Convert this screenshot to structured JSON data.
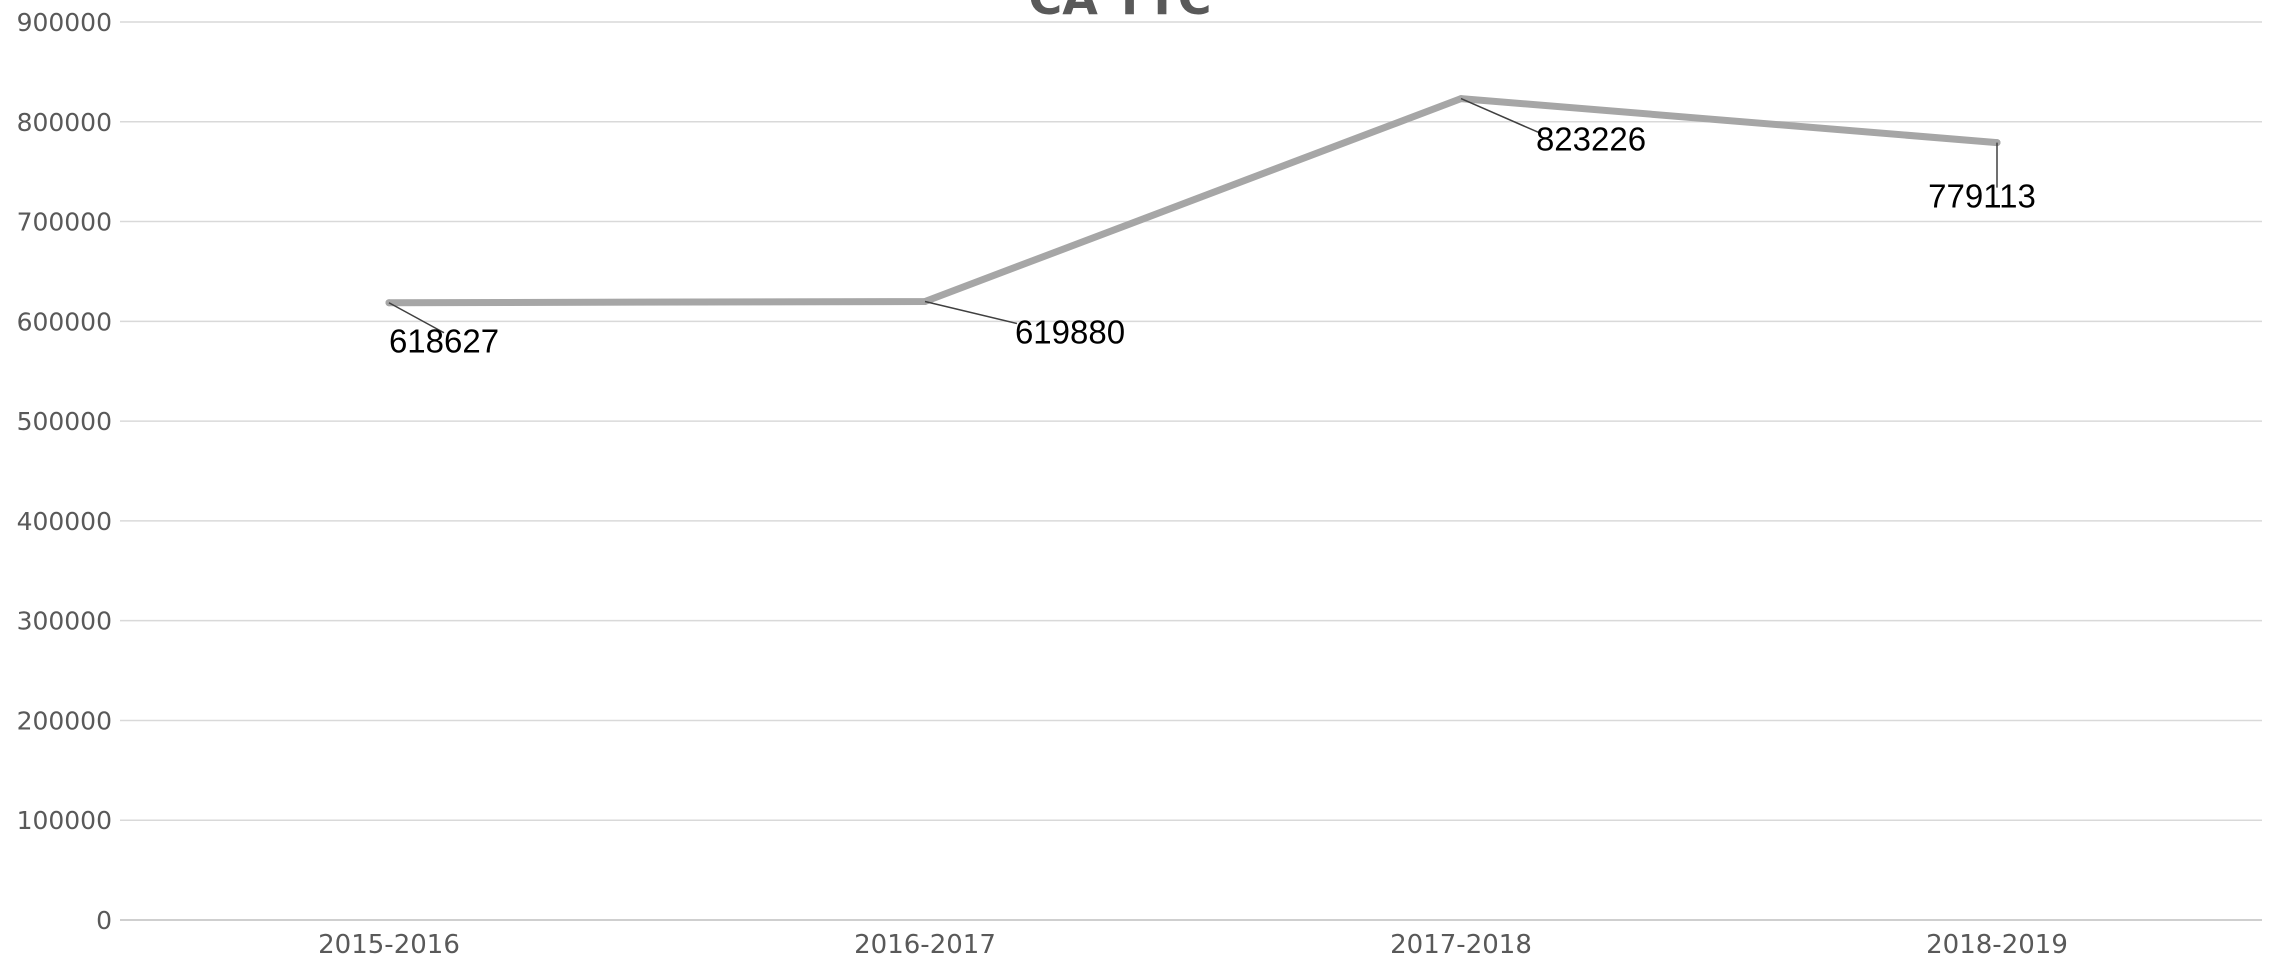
{
  "chart_data": {
    "type": "line",
    "title": "CA TTC",
    "xlabel": "",
    "ylabel": "",
    "categories": [
      "2015-2016",
      "2016-2017",
      "2017-2018",
      "2018-2019"
    ],
    "series": [
      {
        "values": [
          618627,
          619880,
          823226,
          779113
        ],
        "color": "#a6a6a6"
      }
    ],
    "data_labels": [
      "618627",
      "619880",
      "823226",
      "779113"
    ],
    "ylim": [
      0,
      900000
    ],
    "y_ticks": [
      0,
      100000,
      200000,
      300000,
      400000,
      500000,
      600000,
      700000,
      800000,
      900000
    ],
    "y_tick_labels": [
      "0",
      "100000",
      "200000",
      "300000",
      "400000",
      "500000",
      "600000",
      "700000",
      "800000",
      "900000"
    ],
    "grid": true,
    "legend": "none"
  }
}
